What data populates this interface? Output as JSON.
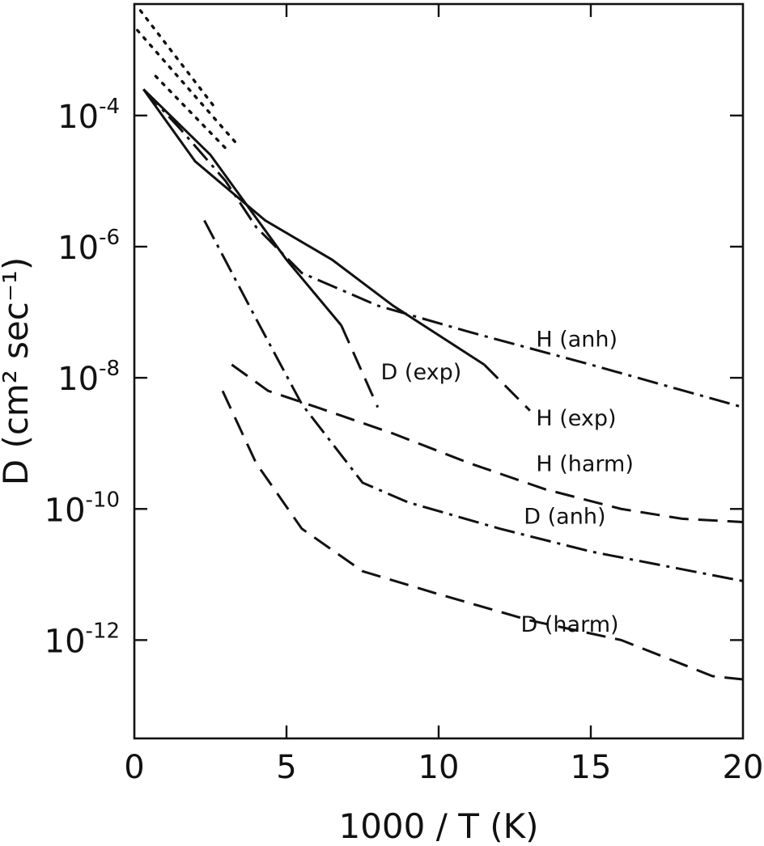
{
  "chart_data": {
    "type": "line",
    "xlabel": "1000 / T (K)",
    "ylabel": "D (cm² sec⁻¹)",
    "xlim": [
      0,
      20
    ],
    "ylim_log10": [
      -13.5,
      -2.3
    ],
    "y_scale": "log",
    "x_ticks": [
      0,
      5,
      10,
      15,
      20
    ],
    "x_tick_labels": [
      "0",
      "5",
      "10",
      "15",
      "20"
    ],
    "y_ticks": [
      {
        "exp": -4,
        "label": "10",
        "sup": "-4"
      },
      {
        "exp": -6,
        "label": "10",
        "sup": "-6"
      },
      {
        "exp": -8,
        "label": "10",
        "sup": "-8"
      },
      {
        "exp": -10,
        "label": "10",
        "sup": "-10"
      },
      {
        "exp": -12,
        "label": "10",
        "sup": "-12"
      }
    ],
    "grid": false,
    "series": [
      {
        "name": "H (anh)",
        "style": "dashdot",
        "label_at": [
          13.2,
          -7.4
        ],
        "points": [
          [
            0.3,
            -3.6
          ],
          [
            1.5,
            -4.2
          ],
          [
            3.0,
            -5.0
          ],
          [
            4.0,
            -5.7
          ],
          [
            5.5,
            -6.4
          ],
          [
            8.0,
            -6.9
          ],
          [
            11.0,
            -7.3
          ],
          [
            15.0,
            -7.8
          ],
          [
            20.0,
            -8.45
          ]
        ]
      },
      {
        "name": "H (exp)",
        "style": "solid-dashed",
        "label_at": [
          13.2,
          -8.6
        ],
        "points": [
          [
            0.3,
            -3.6
          ],
          [
            2.0,
            -4.7
          ],
          [
            4.3,
            -5.6
          ],
          [
            6.5,
            -6.2
          ],
          [
            8.5,
            -6.9
          ],
          [
            9.5,
            -7.2
          ],
          [
            11.5,
            -7.8
          ],
          [
            13.0,
            -8.5
          ]
        ]
      },
      {
        "name": "D (exp)",
        "style": "solid-dashed",
        "label_at": [
          8.1,
          -7.9
        ],
        "points": [
          [
            0.3,
            -3.6
          ],
          [
            2.5,
            -4.6
          ],
          [
            5.0,
            -6.2
          ],
          [
            6.8,
            -7.2
          ],
          [
            8.0,
            -8.45
          ]
        ]
      },
      {
        "name": "H (harm)",
        "style": "dashed",
        "label_at": [
          13.2,
          -9.3
        ],
        "points": [
          [
            3.2,
            -7.8
          ],
          [
            4.4,
            -8.2
          ],
          [
            6.0,
            -8.45
          ],
          [
            8.5,
            -8.85
          ],
          [
            11.0,
            -9.3
          ],
          [
            13.5,
            -9.7
          ],
          [
            16.0,
            -10.0
          ],
          [
            18.0,
            -10.15
          ],
          [
            20.0,
            -10.2
          ]
        ]
      },
      {
        "name": "D (anh)",
        "style": "dashdot",
        "label_at": [
          12.8,
          -10.1
        ],
        "points": [
          [
            2.3,
            -5.6
          ],
          [
            4.0,
            -7.1
          ],
          [
            5.5,
            -8.4
          ],
          [
            7.5,
            -9.6
          ],
          [
            9.0,
            -9.9
          ],
          [
            12.0,
            -10.3
          ],
          [
            15.0,
            -10.65
          ],
          [
            20.0,
            -11.1
          ]
        ]
      },
      {
        "name": "D (harm)",
        "style": "dashed",
        "label_at": [
          12.7,
          -11.75
        ],
        "points": [
          [
            2.9,
            -8.2
          ],
          [
            4.0,
            -9.3
          ],
          [
            5.5,
            -10.3
          ],
          [
            7.5,
            -10.95
          ],
          [
            10.0,
            -11.3
          ],
          [
            13.0,
            -11.7
          ],
          [
            16.0,
            -12.0
          ],
          [
            19.0,
            -12.55
          ],
          [
            20.0,
            -12.6
          ]
        ]
      },
      {
        "name": "",
        "style": "dotted",
        "points": [
          [
            0.2,
            -2.4
          ],
          [
            2.6,
            -3.85
          ]
        ]
      },
      {
        "name": "",
        "style": "dotted",
        "points": [
          [
            0.1,
            -2.7
          ],
          [
            3.4,
            -4.45
          ]
        ]
      },
      {
        "name": "",
        "style": "dotted",
        "points": [
          [
            0.7,
            -3.4
          ],
          [
            3.0,
            -4.5
          ]
        ]
      }
    ]
  }
}
